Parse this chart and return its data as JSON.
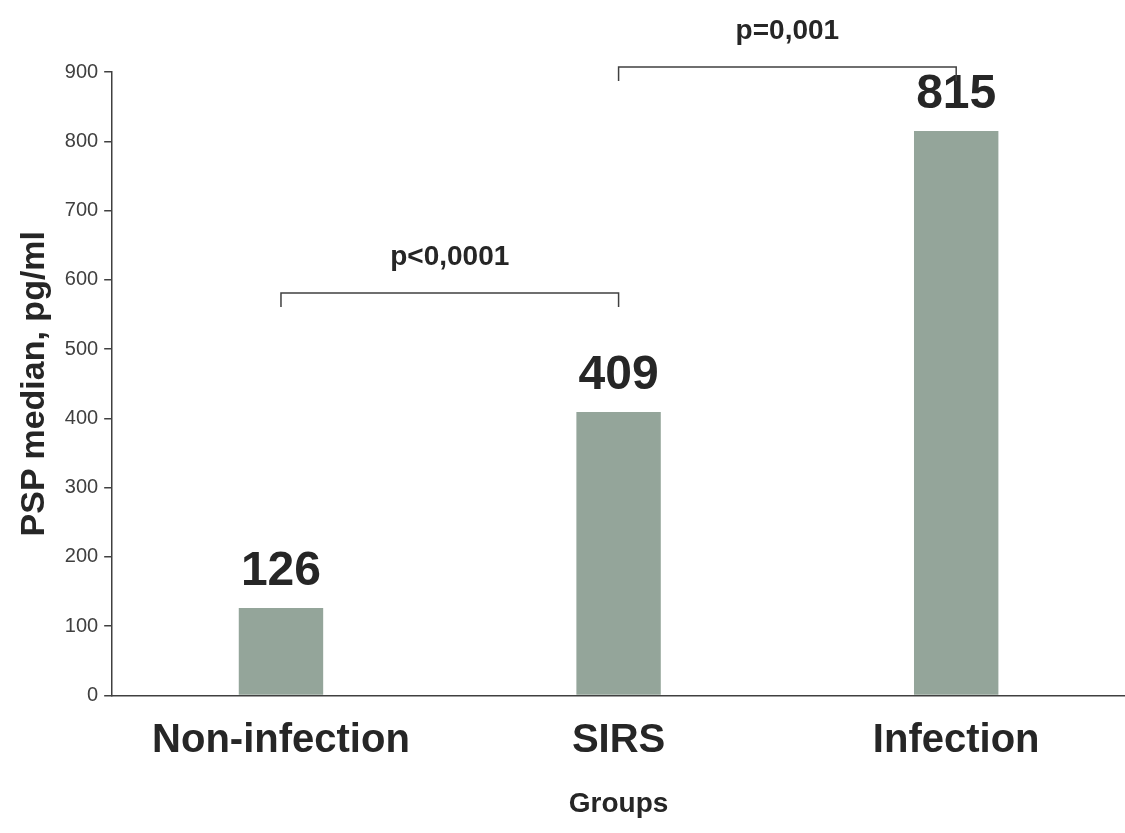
{
  "chart_data": {
    "type": "bar",
    "categories": [
      "Non-infection",
      "SIRS",
      "Infection"
    ],
    "values": [
      126,
      409,
      815
    ],
    "color": "#94a59a",
    "xlabel": "Groups",
    "ylabel": "PSP median, pg/ml",
    "ylim": [
      0,
      900
    ],
    "yticks": [
      0,
      100,
      200,
      300,
      400,
      500,
      600,
      700,
      800,
      900
    ],
    "grid": false,
    "legend": false,
    "data_labels": true,
    "annotations": [
      "p<0,0001",
      "p=0,001"
    ]
  }
}
